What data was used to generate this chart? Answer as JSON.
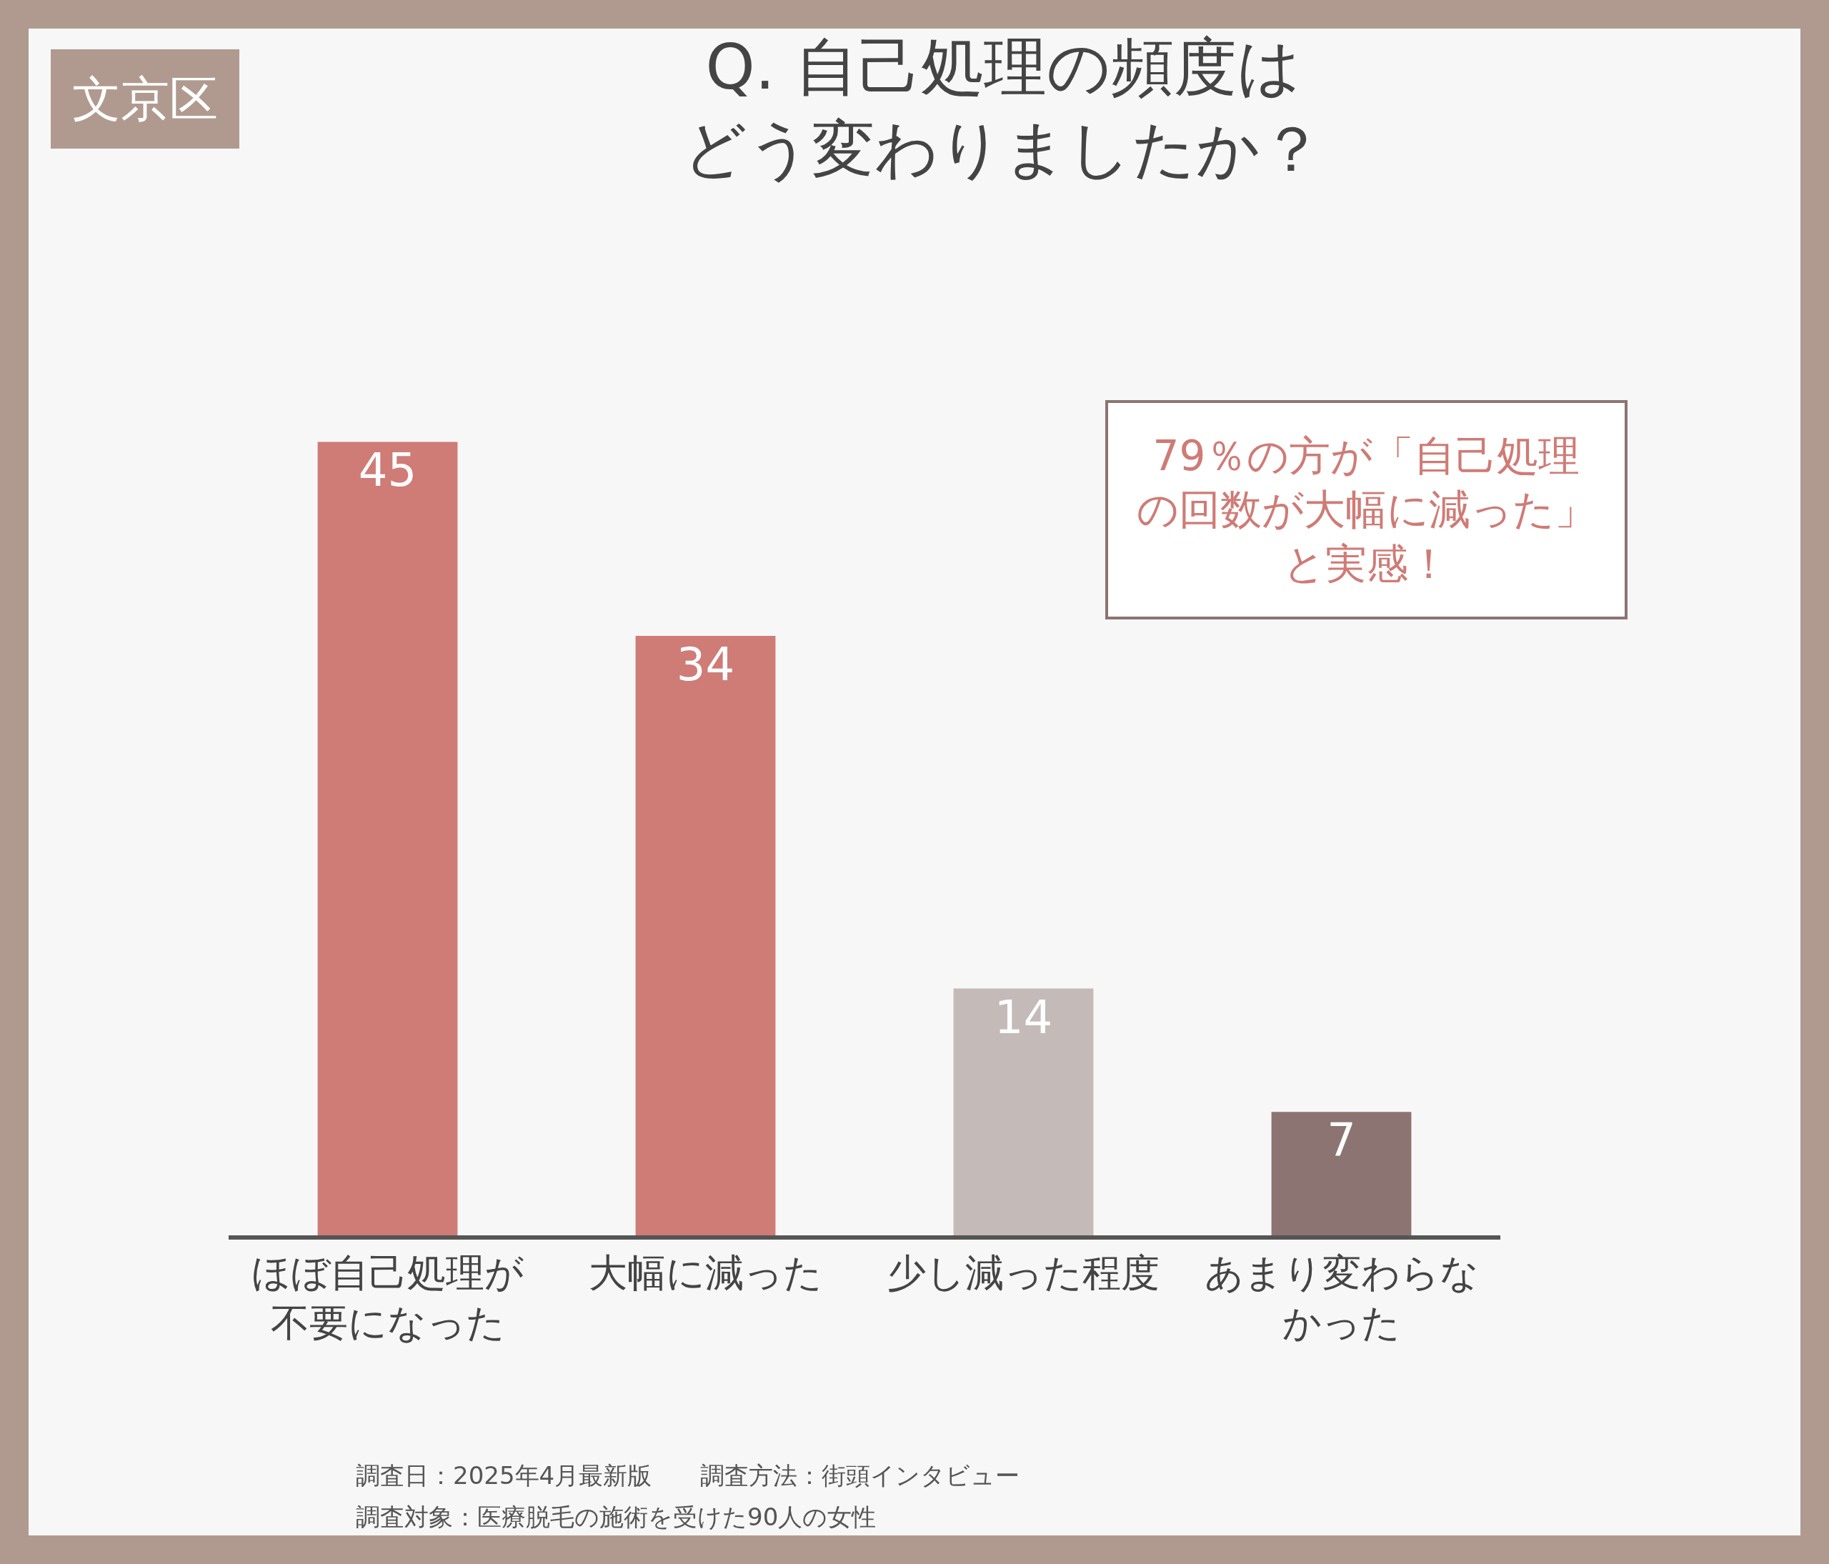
{
  "chart_data": {
    "type": "bar",
    "title": "Q. 自己処理の頻度はどう変わりましたか？",
    "categories": [
      "ほぼ自己処理が不要になった",
      "大幅に減った",
      "少し減った程度",
      "あまり変わらなかった"
    ],
    "values": [
      45,
      34,
      14,
      7
    ],
    "colors": [
      "#cf7b76",
      "#cf7b76",
      "#c4bab7",
      "#8c7472"
    ],
    "data_labels": true,
    "annotations": [
      "文京区",
      "79％の方が「自己処理の回数が大幅に減った」と実感！",
      "調査日：2025年4月最新版　　調査方法：街頭インタビュー",
      "調査対象：医療脱毛の施術を受けた90人の女性"
    ]
  }
}
